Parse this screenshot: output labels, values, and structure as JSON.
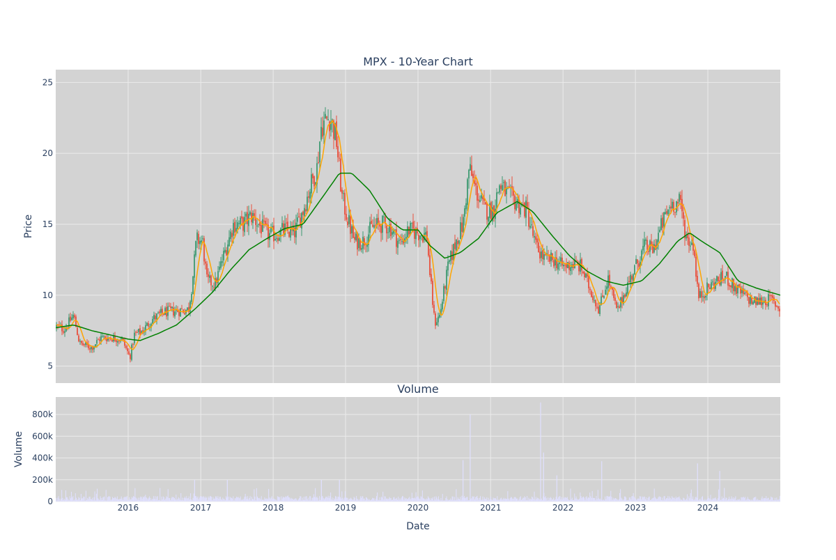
{
  "chart_data": [
    {
      "type": "candlestick",
      "title": "MPX - 10-Year Chart",
      "xlabel": "",
      "ylabel": "Price",
      "ylim": [
        3.8,
        25.9
      ],
      "yticks": [
        5,
        10,
        15,
        20,
        25
      ],
      "x_range": [
        "2015-01-01",
        "2024-12-31"
      ],
      "x_tick_labels": [
        "2016",
        "2017",
        "2018",
        "2019",
        "2020",
        "2021",
        "2022",
        "2023",
        "2024"
      ],
      "grid": true,
      "background": "#d3d3d3",
      "colors": {
        "up": "#3d9970",
        "down": "#e8503e",
        "ma_short": "#ffa500",
        "ma_long": "#008000"
      },
      "approx_price_path": [
        [
          "2015-01-01",
          7.8
        ],
        [
          "2015-02-15",
          7.6
        ],
        [
          "2015-04-01",
          8.6
        ],
        [
          "2015-05-01",
          6.6
        ],
        [
          "2015-07-01",
          6.3
        ],
        [
          "2015-08-15",
          7.0
        ],
        [
          "2015-10-01",
          7.0
        ],
        [
          "2015-12-01",
          6.9
        ],
        [
          "2016-01-10",
          5.6
        ],
        [
          "2016-02-01",
          7.2
        ],
        [
          "2016-03-15",
          7.5
        ],
        [
          "2016-05-01",
          8.3
        ],
        [
          "2016-07-01",
          8.8
        ],
        [
          "2016-09-01",
          8.9
        ],
        [
          "2016-11-01",
          9.0
        ],
        [
          "2016-11-20",
          11.0
        ],
        [
          "2016-12-10",
          13.9
        ],
        [
          "2017-01-10",
          13.8
        ],
        [
          "2017-02-01",
          11.0
        ],
        [
          "2017-03-15",
          10.8
        ],
        [
          "2017-05-01",
          13.0
        ],
        [
          "2017-06-15",
          15.0
        ],
        [
          "2017-08-01",
          15.0
        ],
        [
          "2017-09-15",
          15.6
        ],
        [
          "2017-11-01",
          14.8
        ],
        [
          "2017-12-15",
          14.2
        ],
        [
          "2018-01-15",
          14.3
        ],
        [
          "2018-03-01",
          14.6
        ],
        [
          "2018-04-15",
          14.3
        ],
        [
          "2018-06-01",
          16.0
        ],
        [
          "2018-07-15",
          18.0
        ],
        [
          "2018-08-10",
          19.0
        ],
        [
          "2018-09-01",
          22.0
        ],
        [
          "2018-10-15",
          22.6
        ],
        [
          "2018-11-15",
          21.0
        ],
        [
          "2018-12-15",
          16.8
        ],
        [
          "2019-01-15",
          15.2
        ],
        [
          "2019-02-15",
          13.8
        ],
        [
          "2019-04-01",
          13.8
        ],
        [
          "2019-05-15",
          14.8
        ],
        [
          "2019-07-01",
          15.0
        ],
        [
          "2019-08-15",
          14.8
        ],
        [
          "2019-10-01",
          13.6
        ],
        [
          "2019-11-15",
          14.6
        ],
        [
          "2020-01-01",
          14.4
        ],
        [
          "2020-02-15",
          14.2
        ],
        [
          "2020-03-01",
          11.5
        ],
        [
          "2020-03-25",
          8.0
        ],
        [
          "2020-04-20",
          8.6
        ],
        [
          "2020-06-01",
          12.0
        ],
        [
          "2020-07-15",
          14.0
        ],
        [
          "2020-08-15",
          15.0
        ],
        [
          "2020-09-15",
          19.0
        ],
        [
          "2020-10-15",
          17.5
        ],
        [
          "2020-12-01",
          16.0
        ],
        [
          "2021-01-15",
          16.0
        ],
        [
          "2021-02-15",
          17.8
        ],
        [
          "2021-04-01",
          17.0
        ],
        [
          "2021-05-15",
          16.5
        ],
        [
          "2021-07-01",
          16.0
        ],
        [
          "2021-08-15",
          13.5
        ],
        [
          "2021-10-01",
          12.5
        ],
        [
          "2021-11-15",
          12.5
        ],
        [
          "2022-01-01",
          12.0
        ],
        [
          "2022-02-15",
          12.2
        ],
        [
          "2022-04-01",
          12.0
        ],
        [
          "2022-05-15",
          10.5
        ],
        [
          "2022-07-01",
          9.0
        ],
        [
          "2022-08-15",
          11.2
        ],
        [
          "2022-10-01",
          8.8
        ],
        [
          "2022-11-15",
          10.5
        ],
        [
          "2023-01-01",
          12.0
        ],
        [
          "2023-02-15",
          13.4
        ],
        [
          "2023-04-01",
          13.2
        ],
        [
          "2023-05-15",
          15.0
        ],
        [
          "2023-07-01",
          16.5
        ],
        [
          "2023-08-15",
          16.5
        ],
        [
          "2023-09-15",
          14.0
        ],
        [
          "2023-10-20",
          13.6
        ],
        [
          "2023-11-15",
          9.8
        ],
        [
          "2024-01-01",
          10.5
        ],
        [
          "2024-02-15",
          11.0
        ],
        [
          "2024-04-01",
          11.3
        ],
        [
          "2024-05-15",
          10.5
        ],
        [
          "2024-07-01",
          10.0
        ],
        [
          "2024-08-15",
          9.5
        ],
        [
          "2024-10-01",
          9.6
        ],
        [
          "2024-11-15",
          9.7
        ],
        [
          "2024-12-31",
          9.0
        ]
      ],
      "moving_average_long": [
        [
          "2015-01-01",
          7.7
        ],
        [
          "2015-04-01",
          7.9
        ],
        [
          "2015-07-01",
          7.5
        ],
        [
          "2015-10-01",
          7.2
        ],
        [
          "2016-01-01",
          6.9
        ],
        [
          "2016-03-01",
          6.8
        ],
        [
          "2016-06-01",
          7.3
        ],
        [
          "2016-09-01",
          7.9
        ],
        [
          "2016-12-01",
          9.0
        ],
        [
          "2017-03-01",
          10.2
        ],
        [
          "2017-06-01",
          11.8
        ],
        [
          "2017-09-01",
          13.2
        ],
        [
          "2017-12-01",
          14.0
        ],
        [
          "2018-03-01",
          14.7
        ],
        [
          "2018-06-01",
          15.0
        ],
        [
          "2018-09-01",
          16.8
        ],
        [
          "2018-12-01",
          18.6
        ],
        [
          "2019-02-01",
          18.6
        ],
        [
          "2019-05-01",
          17.4
        ],
        [
          "2019-08-01",
          15.4
        ],
        [
          "2019-10-15",
          14.6
        ],
        [
          "2020-01-01",
          14.6
        ],
        [
          "2020-03-01",
          13.5
        ],
        [
          "2020-05-15",
          12.6
        ],
        [
          "2020-08-01",
          13.0
        ],
        [
          "2020-11-01",
          14.0
        ],
        [
          "2021-02-01",
          15.8
        ],
        [
          "2021-05-15",
          16.6
        ],
        [
          "2021-08-01",
          15.9
        ],
        [
          "2021-11-01",
          14.3
        ],
        [
          "2022-02-01",
          12.8
        ],
        [
          "2022-05-01",
          11.7
        ],
        [
          "2022-08-01",
          11.0
        ],
        [
          "2022-11-01",
          10.7
        ],
        [
          "2023-02-01",
          11.0
        ],
        [
          "2023-05-01",
          12.2
        ],
        [
          "2023-08-01",
          13.8
        ],
        [
          "2023-10-01",
          14.4
        ],
        [
          "2023-12-01",
          13.8
        ],
        [
          "2024-03-01",
          13.0
        ],
        [
          "2024-06-01",
          11.0
        ],
        [
          "2024-09-01",
          10.5
        ],
        [
          "2024-12-31",
          10.0
        ]
      ]
    },
    {
      "type": "bar",
      "title": "Volume",
      "xlabel": "Date",
      "ylabel": "Volume",
      "ylim": [
        0,
        960000
      ],
      "yticks": [
        {
          "value": 0,
          "label": "0"
        },
        {
          "value": 200000,
          "label": "200k"
        },
        {
          "value": 400000,
          "label": "400k"
        },
        {
          "value": 600000,
          "label": "600k"
        },
        {
          "value": 800000,
          "label": "800k"
        }
      ],
      "x_tick_labels": [
        "2016",
        "2017",
        "2018",
        "2019",
        "2020",
        "2021",
        "2022",
        "2023",
        "2024"
      ],
      "grid": true,
      "background": "#d3d3d3",
      "bar_color": "#e0e0ff",
      "notable_spikes": [
        [
          "2016-12-01",
          200000
        ],
        [
          "2017-05-15",
          200000
        ],
        [
          "2018-09-01",
          200000
        ],
        [
          "2018-12-01",
          200000
        ],
        [
          "2020-08-15",
          380000
        ],
        [
          "2020-09-20",
          800000
        ],
        [
          "2021-09-10",
          910000
        ],
        [
          "2021-09-25",
          450000
        ],
        [
          "2021-12-01",
          240000
        ],
        [
          "2022-07-15",
          370000
        ],
        [
          "2023-11-10",
          350000
        ],
        [
          "2024-03-01",
          280000
        ]
      ],
      "typical_level": 30000
    }
  ]
}
